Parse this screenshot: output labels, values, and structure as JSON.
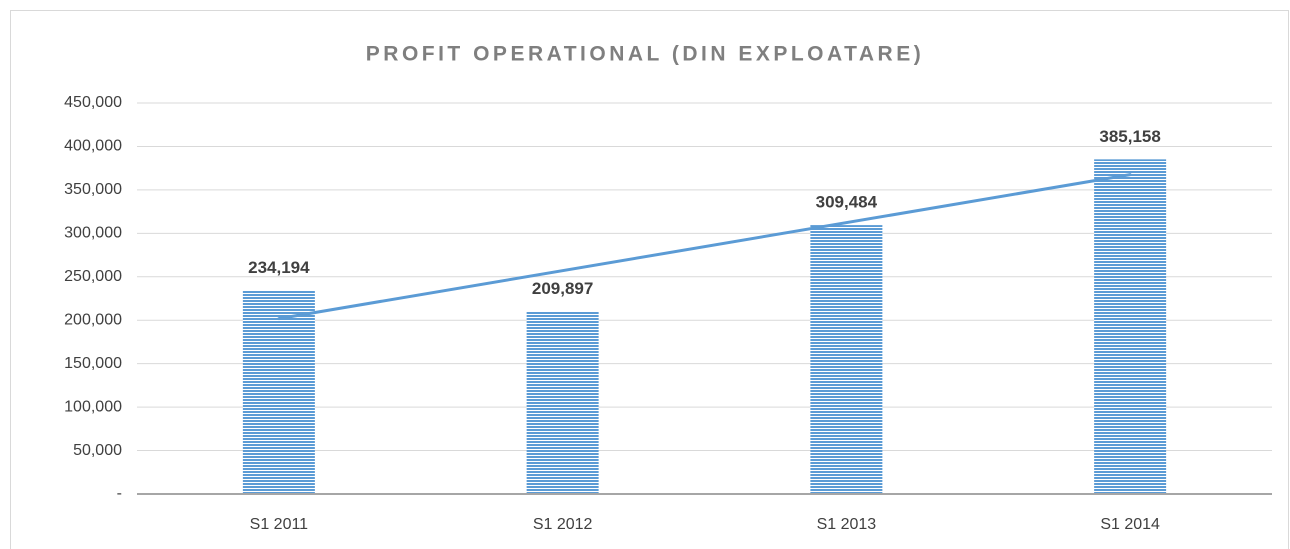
{
  "chart_data": {
    "type": "bar",
    "title": "PROFIT OPERATIONAL (DIN EXPLOATARE)",
    "categories": [
      "S1 2011",
      "S1 2012",
      "S1 2013",
      "S1 2014"
    ],
    "values": [
      234194,
      209897,
      309484,
      385158
    ],
    "value_labels": [
      "234,194",
      "209,897",
      "309,484",
      "385,158"
    ],
    "color": "#5b9bd5",
    "ylim": [
      0,
      450000
    ],
    "yticks": [
      {
        "value": 0,
        "label": "-"
      },
      {
        "value": 50000,
        "label": "50,000"
      },
      {
        "value": 100000,
        "label": "100,000"
      },
      {
        "value": 150000,
        "label": "150,000"
      },
      {
        "value": 200000,
        "label": "200,000"
      },
      {
        "value": 250000,
        "label": "250,000"
      },
      {
        "value": 300000,
        "label": "300,000"
      },
      {
        "value": 350000,
        "label": "350,000"
      },
      {
        "value": 400000,
        "label": "400,000"
      },
      {
        "value": 450000,
        "label": "450,000"
      }
    ],
    "grid": true,
    "trendline": {
      "type": "linear",
      "color": "#5b9bd5"
    }
  }
}
